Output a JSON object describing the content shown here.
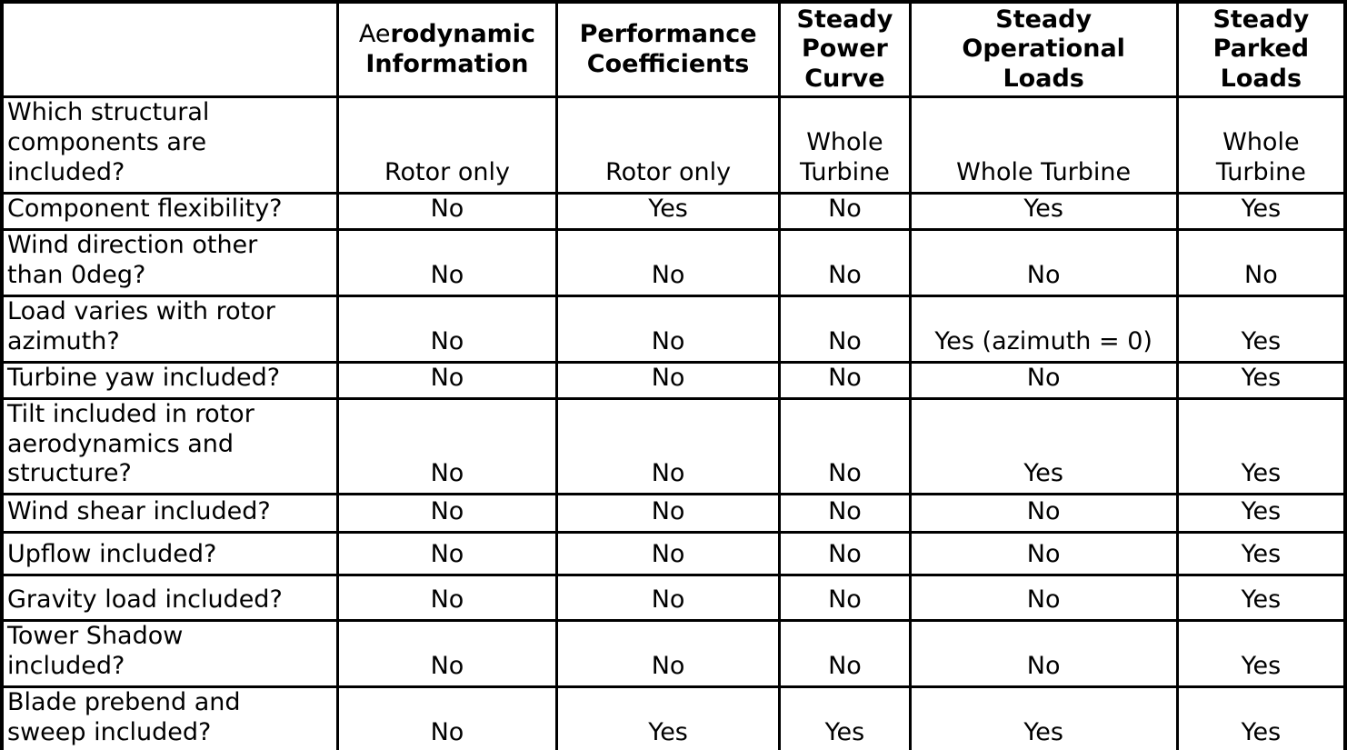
{
  "colors": {
    "yes_text": "#1b7a1b",
    "no_text": "#cc1111",
    "border": "#000000",
    "text": "#000000",
    "background": "#ffffff"
  },
  "chart_data": {
    "type": "table",
    "title": "Analysis capability comparison table",
    "corner_label": "",
    "columns": [
      {
        "label": "Aerodynamic\nInformation",
        "regular_prefix": "Ae"
      },
      {
        "label": "Performance\nCoefficients"
      },
      {
        "label": "Steady\nPower\nCurve"
      },
      {
        "label": "Steady\nOperational\nLoads"
      },
      {
        "label": "Steady\nParked\nLoads"
      }
    ],
    "rows": [
      {
        "label": "Which structural\ncomponents are\nincluded?",
        "values": [
          "Rotor only",
          "Rotor only",
          "Whole\nTurbine",
          "Whole Turbine",
          "Whole\nTurbine"
        ]
      },
      {
        "label": "Component flexibility?",
        "values": [
          "No",
          "Yes",
          "No",
          "Yes",
          "Yes"
        ]
      },
      {
        "label": "Wind direction other\nthan 0deg?",
        "values": [
          "No",
          "No",
          "No",
          "No",
          "No"
        ]
      },
      {
        "label": "Load varies with rotor\nazimuth?",
        "values": [
          "No",
          "No",
          "No",
          "Yes (azimuth = 0)",
          "Yes"
        ]
      },
      {
        "label": "Turbine yaw included?",
        "values": [
          "No",
          "No",
          "No",
          "No",
          "Yes"
        ]
      },
      {
        "label": "Tilt included in rotor\naerodynamics and\nstructure?",
        "values": [
          "No",
          "No",
          "No",
          "Yes",
          "Yes"
        ]
      },
      {
        "label": "Wind shear included?",
        "values": [
          "No",
          "No",
          "No",
          "No",
          "Yes"
        ]
      },
      {
        "label": "Upflow included?",
        "values": [
          "No",
          "No",
          "No",
          "No",
          "Yes"
        ]
      },
      {
        "label": "Gravity load included?",
        "values": [
          "No",
          "No",
          "No",
          "No",
          "Yes"
        ]
      },
      {
        "label": "Tower Shadow\nincluded?",
        "values": [
          "No",
          "No",
          "No",
          "No",
          "Yes"
        ]
      },
      {
        "label": "Blade prebend and\nsweep included?",
        "values": [
          "No",
          "Yes",
          "Yes",
          "Yes",
          "Yes"
        ]
      }
    ]
  }
}
